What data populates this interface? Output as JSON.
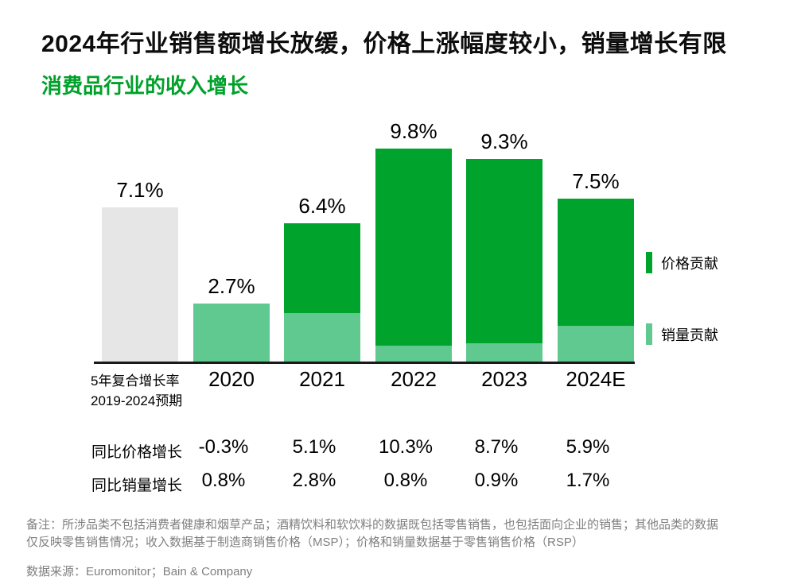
{
  "title": "2024年行业销售额增长放缓，价格上涨幅度较小，销量增长有限",
  "subtitle": "消费品行业的收入增长",
  "colors": {
    "price": "#00A32B",
    "volume": "#5FC98F",
    "cagr_bar": "#E6E6E6",
    "subtitle_green": "#00A02B",
    "axis": "#1a1a1a",
    "note_gray": "#808080"
  },
  "chart_data": {
    "type": "stacked-bar",
    "title": "消费品行业的收入增长",
    "unit": "%",
    "ylim": [
      0,
      10.5
    ],
    "grid": false,
    "legend_position": "right",
    "categories": [
      "5年复合增长率 2019-2024预期",
      "2020",
      "2021",
      "2022",
      "2023",
      "2024E"
    ],
    "bars": [
      {
        "key": "cagr",
        "category": "5年复合增长率 2019-2024预期",
        "axis_label_lines": [
          "5年复合增长率",
          "2019-2024预期"
        ],
        "total": 7.1,
        "total_label": "7.1%",
        "segments": [
          {
            "name": "cagr",
            "value": 7.1,
            "color_key": "cagr_bar"
          }
        ]
      },
      {
        "key": "2020",
        "category": "2020",
        "total": 2.7,
        "total_label": "2.7%",
        "segments": [
          {
            "name": "volume",
            "value": 2.7,
            "color_key": "volume"
          }
        ]
      },
      {
        "key": "2021",
        "category": "2021",
        "total": 6.4,
        "total_label": "6.4%",
        "segments": [
          {
            "name": "volume",
            "value": 2.3,
            "color_key": "volume"
          },
          {
            "name": "price",
            "value": 4.1,
            "color_key": "price"
          }
        ]
      },
      {
        "key": "2022",
        "category": "2022",
        "total": 9.8,
        "total_label": "9.8%",
        "segments": [
          {
            "name": "volume",
            "value": 0.8,
            "color_key": "volume"
          },
          {
            "name": "price",
            "value": 9.0,
            "color_key": "price"
          }
        ]
      },
      {
        "key": "2023",
        "category": "2023",
        "total": 9.3,
        "total_label": "9.3%",
        "segments": [
          {
            "name": "volume",
            "value": 0.9,
            "color_key": "volume"
          },
          {
            "name": "price",
            "value": 8.4,
            "color_key": "price"
          }
        ]
      },
      {
        "key": "2024E",
        "category": "2024E",
        "total": 7.5,
        "total_label": "7.5%",
        "segments": [
          {
            "name": "volume",
            "value": 1.7,
            "color_key": "volume"
          },
          {
            "name": "price",
            "value": 5.8,
            "color_key": "price"
          }
        ]
      }
    ],
    "legend": [
      {
        "key": "price",
        "label": "价格贡献",
        "color_key": "price"
      },
      {
        "key": "volume",
        "label": "销量贡献",
        "color_key": "volume"
      }
    ],
    "table_rows": [
      {
        "key": "yoy-price-growth",
        "label": "同比价格增长",
        "values": [
          "-0.3%",
          "5.1%",
          "10.3%",
          "8.7%",
          "5.9%"
        ]
      },
      {
        "key": "yoy-volume-growth",
        "label": "同比销量增长",
        "values": [
          "0.8%",
          "2.8%",
          "0.8%",
          "0.9%",
          "1.7%"
        ]
      }
    ]
  },
  "footer": {
    "note_lines": [
      "备注：所涉品类不包括消费者健康和烟草产品；酒精饮料和软饮料的数据既包括零售销售，也包括面向企业的销售；其他品类的数据",
      "仅反映零售销售情况；收入数据基于制造商销售价格（MSP）；价格和销量数据基于零售销售价格（RSP）"
    ],
    "source": "数据来源：Euromonitor；Bain & Company"
  }
}
